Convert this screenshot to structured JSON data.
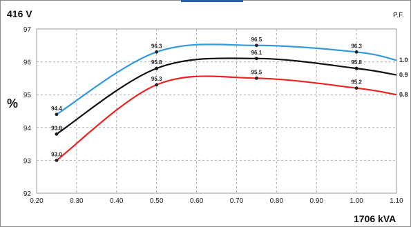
{
  "chart_data": {
    "type": "line",
    "title": "416 V",
    "ylabel": "%",
    "xlabel": "1706 kVA",
    "legend_title": "P.F.",
    "xlim": [
      0.2,
      1.1
    ],
    "ylim": [
      92,
      97
    ],
    "xticks": [
      "0.20",
      "0.30",
      "0.40",
      "0.50",
      "0.60",
      "0.70",
      "0.80",
      "0.90",
      "1.00",
      "1.10"
    ],
    "yticks": [
      "92",
      "93",
      "94",
      "95",
      "96",
      "97"
    ],
    "grid": true,
    "series": [
      {
        "name": "1.0",
        "color": "#3399dd",
        "x": [
          0.25,
          0.5,
          0.75,
          1.0,
          1.1
        ],
        "y": [
          94.4,
          96.3,
          96.5,
          96.3,
          96.05
        ],
        "labels": [
          "94.4",
          "96.3",
          "96.5",
          "96.3",
          null
        ]
      },
      {
        "name": "0.9",
        "color": "#111111",
        "x": [
          0.25,
          0.5,
          0.75,
          1.0,
          1.1
        ],
        "y": [
          93.8,
          95.8,
          96.1,
          95.8,
          95.6
        ],
        "labels": [
          "93.8",
          "95.8",
          "96.1",
          "95.8",
          null
        ]
      },
      {
        "name": "0.8",
        "color": "#ee2222",
        "x": [
          0.25,
          0.5,
          0.75,
          1.0,
          1.1
        ],
        "y": [
          93.0,
          95.3,
          95.5,
          95.2,
          95.0
        ],
        "labels": [
          "93.0",
          "95.3",
          "95.5",
          "95.2",
          null
        ]
      }
    ]
  }
}
